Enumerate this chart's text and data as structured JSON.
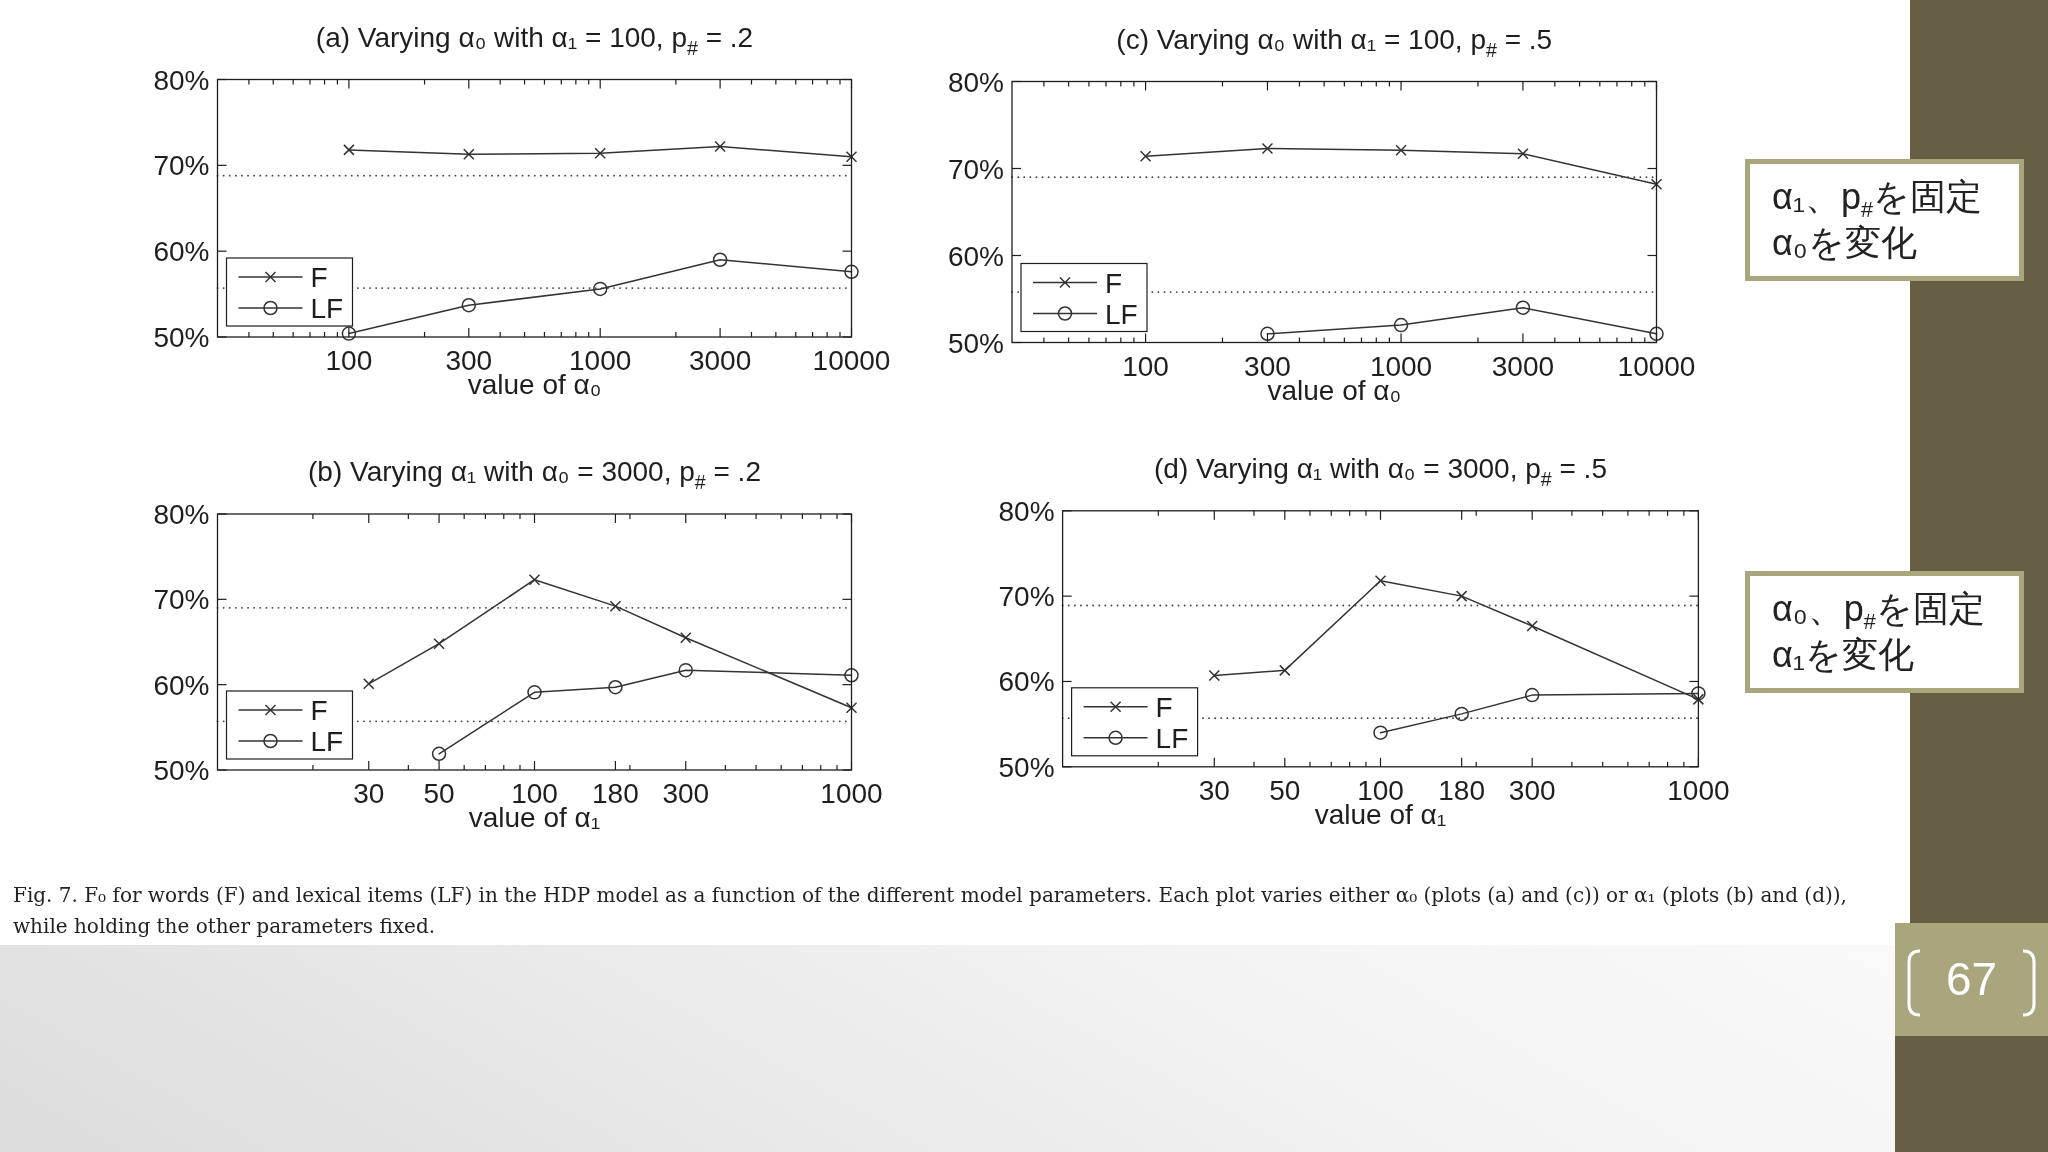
{
  "chart_data": [
    {
      "type": "line",
      "title": "(a) Varying α₀ with α₁ = 100, p$_{#}$ = .2",
      "xlabel": "value of α₀",
      "log": "x",
      "xlim": [
        30,
        10000
      ],
      "xticks": [
        {
          "value": 40,
          "label": null
        },
        {
          "value": 50,
          "label": null
        },
        {
          "value": 60,
          "label": null
        },
        {
          "value": 70,
          "label": null
        },
        {
          "value": 80,
          "label": null
        },
        {
          "value": 90,
          "label": null
        },
        100,
        {
          "value": 200,
          "label": null
        },
        300,
        {
          "value": 400,
          "label": null
        },
        {
          "value": 500,
          "label": null
        },
        {
          "value": 600,
          "label": null
        },
        {
          "value": 700,
          "label": null
        },
        {
          "value": 800,
          "label": null
        },
        {
          "value": 900,
          "label": null
        },
        1000,
        {
          "value": 2000,
          "label": null
        },
        3000,
        {
          "value": 4000,
          "label": null
        },
        {
          "value": 5000,
          "label": null
        },
        {
          "value": 6000,
          "label": null
        },
        {
          "value": 7000,
          "label": null
        },
        {
          "value": 8000,
          "label": null
        },
        {
          "value": 9000,
          "label": null
        },
        10000
      ],
      "ylim": [
        50,
        80
      ],
      "yticks": [
        {
          "value": 50,
          "label": "50%"
        },
        {
          "value": 60,
          "label": "60%"
        },
        {
          "value": 70,
          "label": "70%"
        },
        {
          "value": 80,
          "label": "80%"
        }
      ],
      "x": [
        100,
        300,
        1000,
        3000,
        10000
      ],
      "series": [
        {
          "name": "F",
          "color": "#333333",
          "marker": "cross",
          "values": [
            71.8,
            71.3,
            71.4,
            72.2,
            71.0
          ]
        },
        {
          "name": "LF",
          "color": "#333333",
          "marker": "circle",
          "values": [
            50.4,
            53.7,
            55.6,
            59.0,
            57.6
          ]
        }
      ],
      "ref_lines": [
        {
          "axis": "y",
          "value": 68.8,
          "color": "#444444",
          "line_style": "dotted"
        },
        {
          "axis": "y",
          "value": 55.7,
          "color": "#444444",
          "line_style": "dotted"
        }
      ],
      "legend": "bottom left"
    },
    {
      "type": "line",
      "title": "(c) Varying α₀ with α₁ = 100, p$_{#}$ = .5",
      "xlabel": "value of α₀",
      "log": "x",
      "xlim": [
        30,
        10000
      ],
      "xticks": [
        {
          "value": 40,
          "label": null
        },
        {
          "value": 50,
          "label": null
        },
        {
          "value": 60,
          "label": null
        },
        {
          "value": 70,
          "label": null
        },
        {
          "value": 80,
          "label": null
        },
        {
          "value": 90,
          "label": null
        },
        100,
        {
          "value": 200,
          "label": null
        },
        300,
        {
          "value": 400,
          "label": null
        },
        {
          "value": 500,
          "label": null
        },
        {
          "value": 600,
          "label": null
        },
        {
          "value": 700,
          "label": null
        },
        {
          "value": 800,
          "label": null
        },
        {
          "value": 900,
          "label": null
        },
        1000,
        {
          "value": 2000,
          "label": null
        },
        3000,
        {
          "value": 4000,
          "label": null
        },
        {
          "value": 5000,
          "label": null
        },
        {
          "value": 6000,
          "label": null
        },
        {
          "value": 7000,
          "label": null
        },
        {
          "value": 8000,
          "label": null
        },
        {
          "value": 9000,
          "label": null
        },
        10000
      ],
      "ylim": [
        50,
        80
      ],
      "yticks": [
        {
          "value": 50,
          "label": "50%"
        },
        {
          "value": 60,
          "label": "60%"
        },
        {
          "value": 70,
          "label": "70%"
        },
        {
          "value": 80,
          "label": "80%"
        }
      ],
      "x": [
        100,
        300,
        1000,
        3000,
        10000
      ],
      "series": [
        {
          "name": "F",
          "color": "#333333",
          "marker": "cross",
          "values": [
            71.4,
            72.3,
            72.1,
            71.7,
            68.2
          ]
        },
        {
          "name": "LF",
          "color": "#333333",
          "marker": "circle",
          "values": [
            null,
            51.0,
            52.0,
            54.0,
            51.0
          ]
        }
      ],
      "ref_lines": [
        {
          "axis": "y",
          "value": 69.0,
          "color": "#444444",
          "line_style": "dotted"
        },
        {
          "axis": "y",
          "value": 55.8,
          "color": "#444444",
          "line_style": "dotted"
        }
      ],
      "legend": "bottom left"
    },
    {
      "type": "line",
      "title": "(b) Varying α₁ with α₀ = 3000, p$_{#}$ = .2",
      "xlabel": "value of α₁",
      "log": "x",
      "xlim": [
        10,
        1000
      ],
      "xticks": [
        {
          "value": 20,
          "label": null
        },
        30,
        {
          "value": 40,
          "label": null
        },
        50,
        {
          "value": 60,
          "label": null
        },
        {
          "value": 70,
          "label": null
        },
        {
          "value": 80,
          "label": null
        },
        {
          "value": 90,
          "label": null
        },
        100,
        180,
        {
          "value": 200,
          "label": null
        },
        300,
        {
          "value": 400,
          "label": null
        },
        {
          "value": 500,
          "label": null
        },
        {
          "value": 600,
          "label": null
        },
        {
          "value": 700,
          "label": null
        },
        {
          "value": 800,
          "label": null
        },
        {
          "value": 900,
          "label": null
        },
        1000
      ],
      "ylim": [
        50,
        80
      ],
      "yticks": [
        {
          "value": 50,
          "label": "50%"
        },
        {
          "value": 60,
          "label": "60%"
        },
        {
          "value": 70,
          "label": "70%"
        },
        {
          "value": 80,
          "label": "80%"
        }
      ],
      "x": [
        30,
        50,
        100,
        180,
        300,
        1000
      ],
      "series": [
        {
          "name": "F",
          "color": "#333333",
          "marker": "cross",
          "values": [
            60.1,
            64.8,
            72.3,
            69.2,
            65.5,
            57.3
          ]
        },
        {
          "name": "LF",
          "color": "#333333",
          "marker": "circle",
          "values": [
            null,
            51.9,
            59.1,
            59.7,
            61.7,
            61.1
          ]
        }
      ],
      "ref_lines": [
        {
          "axis": "y",
          "value": 69.0,
          "color": "#444444",
          "line_style": "dotted"
        },
        {
          "axis": "y",
          "value": 55.7,
          "color": "#444444",
          "line_style": "dotted"
        }
      ],
      "legend": "bottom left"
    },
    {
      "type": "line",
      "title": "(d) Varying α₁ with α₀ = 3000, p$_{#}$ = .5",
      "xlabel": "value of α₁",
      "log": "x",
      "xlim": [
        10,
        1000
      ],
      "xticks": [
        {
          "value": 20,
          "label": null
        },
        30,
        {
          "value": 40,
          "label": null
        },
        50,
        {
          "value": 60,
          "label": null
        },
        {
          "value": 70,
          "label": null
        },
        {
          "value": 80,
          "label": null
        },
        {
          "value": 90,
          "label": null
        },
        100,
        180,
        {
          "value": 200,
          "label": null
        },
        300,
        {
          "value": 400,
          "label": null
        },
        {
          "value": 500,
          "label": null
        },
        {
          "value": 600,
          "label": null
        },
        {
          "value": 700,
          "label": null
        },
        {
          "value": 800,
          "label": null
        },
        {
          "value": 900,
          "label": null
        },
        1000
      ],
      "ylim": [
        50,
        80
      ],
      "yticks": [
        {
          "value": 50,
          "label": "50%"
        },
        {
          "value": 60,
          "label": "60%"
        },
        {
          "value": 70,
          "label": "70%"
        },
        {
          "value": 80,
          "label": "80%"
        }
      ],
      "x": [
        30,
        50,
        100,
        180,
        300,
        1000
      ],
      "series": [
        {
          "name": "F",
          "color": "#333333",
          "marker": "cross",
          "values": [
            60.7,
            61.3,
            71.8,
            70.0,
            66.5,
            57.9
          ]
        },
        {
          "name": "LF",
          "color": "#333333",
          "marker": "circle",
          "values": [
            null,
            null,
            54.0,
            56.2,
            58.4,
            58.6
          ]
        }
      ],
      "ref_lines": [
        {
          "axis": "y",
          "value": 68.9,
          "color": "#444444",
          "line_style": "dotted"
        },
        {
          "axis": "y",
          "value": 55.7,
          "color": "#444444",
          "line_style": "dotted"
        }
      ],
      "legend": "bottom left"
    },
    {
      "type": "other",
      "annotations": [
        "α₁、p$_{#}$を固定\nα₀を変化",
        "α₀、p$_{#}$を固定\nα₁を変化",
        "Fig. 7. F₀ for words (F) and lexical items (LF) in the HDP model as a function of the different model parameters. Each plot varies either α₀ (plots (a) and (c)) or α₁ (plots (b) and (d)), while holding the other parameters fixed.",
        "67"
      ]
    }
  ]
}
